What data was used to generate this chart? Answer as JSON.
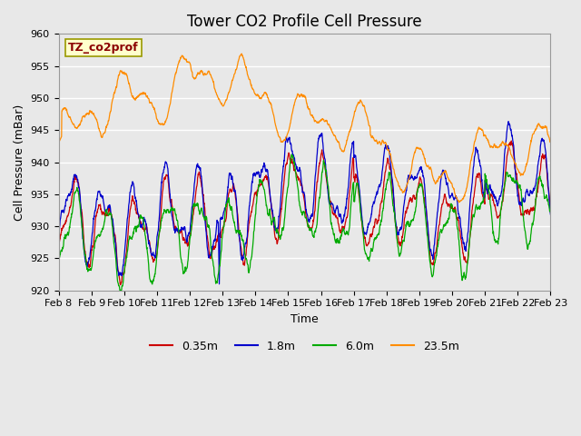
{
  "title": "Tower CO2 Profile Cell Pressure",
  "xlabel": "Time",
  "ylabel": "Cell Pressure (mBar)",
  "ylim": [
    920,
    960
  ],
  "xlim": [
    0,
    15
  ],
  "fig_width": 6.4,
  "fig_height": 4.8,
  "fig_dpi": 100,
  "background_color": "#e8e8e8",
  "plot_bg_color": "#e8e8e8",
  "label_box_text": "TZ_co2prof",
  "label_box_facecolor": "#ffffcc",
  "label_box_edgecolor": "#999900",
  "label_box_textcolor": "#8b0000",
  "series": [
    {
      "label": "0.35m",
      "color": "#cc0000"
    },
    {
      "label": "1.8m",
      "color": "#0000cc"
    },
    {
      "label": "6.0m",
      "color": "#00aa00"
    },
    {
      "label": "23.5m",
      "color": "#ff8c00"
    }
  ],
  "xtick_labels": [
    "Feb 8",
    "Feb 9",
    "Feb 10",
    "Feb 11",
    "Feb 12",
    "Feb 13",
    "Feb 14",
    "Feb 15",
    "Feb 16",
    "Feb 17",
    "Feb 18",
    "Feb 19",
    "Feb 20",
    "Feb 21",
    "Feb 22",
    "Feb 23"
  ],
  "ytick_values": [
    920,
    925,
    930,
    935,
    940,
    945,
    950,
    955,
    960
  ],
  "title_fontsize": 12,
  "axis_label_fontsize": 9,
  "tick_fontsize": 8,
  "legend_fontsize": 9,
  "line_width": 0.9
}
